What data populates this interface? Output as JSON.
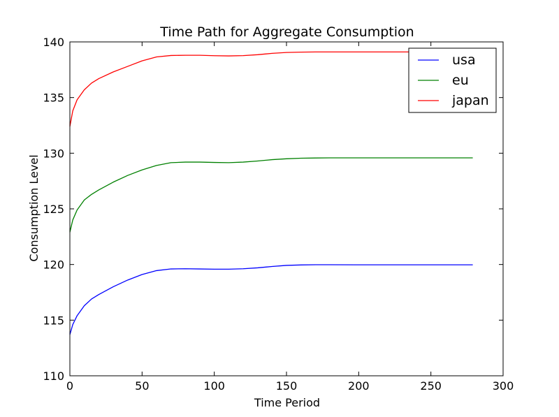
{
  "chart_data": {
    "type": "line",
    "title": "Time Path for Aggregate Consumption",
    "xlabel": "Time Period",
    "ylabel": "Consumption Level",
    "xlim": [
      0,
      300
    ],
    "ylim": [
      110,
      140
    ],
    "xticks": [
      0,
      50,
      100,
      150,
      200,
      250,
      300
    ],
    "yticks": [
      110,
      115,
      120,
      125,
      130,
      135,
      140
    ],
    "xtick_labels": [
      "0",
      "50",
      "100",
      "150",
      "200",
      "250",
      "300"
    ],
    "ytick_labels": [
      "110",
      "115",
      "120",
      "125",
      "130",
      "135",
      "140"
    ],
    "grid": false,
    "legend_position": "top-right",
    "x": [
      0,
      2,
      5,
      10,
      15,
      20,
      30,
      40,
      50,
      60,
      70,
      80,
      90,
      100,
      110,
      120,
      130,
      140,
      150,
      160,
      170,
      180,
      200,
      220,
      240,
      260,
      279
    ],
    "series": [
      {
        "name": "usa",
        "color": "#0000ff",
        "values": [
          113.7,
          114.6,
          115.4,
          116.3,
          116.9,
          117.3,
          118.0,
          118.6,
          119.1,
          119.45,
          119.6,
          119.62,
          119.6,
          119.58,
          119.58,
          119.62,
          119.7,
          119.82,
          119.92,
          119.96,
          119.98,
          119.98,
          119.97,
          119.97,
          119.97,
          119.97,
          119.97
        ]
      },
      {
        "name": "eu",
        "color": "#008000",
        "values": [
          122.9,
          124.0,
          124.9,
          125.8,
          126.3,
          126.7,
          127.4,
          128.0,
          128.5,
          128.9,
          129.15,
          129.2,
          129.2,
          129.17,
          129.15,
          129.2,
          129.3,
          129.42,
          129.5,
          129.55,
          129.57,
          129.58,
          129.58,
          129.58,
          129.58,
          129.58,
          129.58
        ]
      },
      {
        "name": "japan",
        "color": "#ff0000",
        "values": [
          132.4,
          133.8,
          134.8,
          135.7,
          136.3,
          136.7,
          137.3,
          137.8,
          138.3,
          138.65,
          138.78,
          138.8,
          138.8,
          138.76,
          138.74,
          138.77,
          138.85,
          138.97,
          139.05,
          139.08,
          139.1,
          139.1,
          139.1,
          139.1,
          139.1,
          139.1,
          139.1
        ]
      }
    ]
  }
}
